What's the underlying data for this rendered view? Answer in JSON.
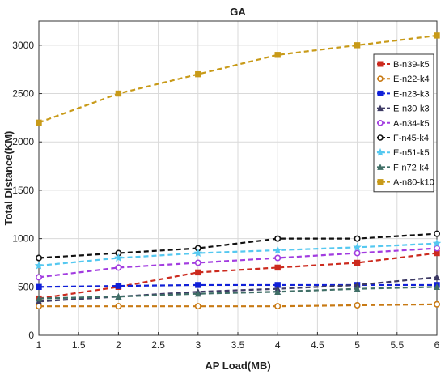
{
  "chart_data": {
    "type": "line",
    "title": "GA",
    "xlabel": "AP Load(MB)",
    "ylabel": "Total Distance(KM)",
    "xlim": [
      1,
      6
    ],
    "ylim": [
      0,
      3250
    ],
    "x_ticks": [
      "1",
      "1.5",
      "2",
      "2.5",
      "3",
      "3.5",
      "4",
      "4.5",
      "5",
      "5.5",
      "6"
    ],
    "y_ticks": [
      "0",
      "500",
      "1000",
      "1500",
      "2000",
      "2500",
      "3000"
    ],
    "grid": true,
    "legend_position": "top-right",
    "x": [
      1,
      2,
      3,
      4,
      5,
      6
    ],
    "series": [
      {
        "name": "B-n39-k5",
        "color": "#cc2a1e",
        "marker": "square",
        "values": [
          380,
          500,
          650,
          700,
          750,
          850
        ]
      },
      {
        "name": "E-n22-k4",
        "color": "#c87a14",
        "marker": "circle-open",
        "values": [
          300,
          300,
          300,
          300,
          310,
          320
        ]
      },
      {
        "name": "E-n23-k3",
        "color": "#1020d8",
        "marker": "square",
        "values": [
          500,
          510,
          520,
          520,
          520,
          520
        ]
      },
      {
        "name": "E-n30-k3",
        "color": "#3d3a64",
        "marker": "triangle",
        "values": [
          350,
          400,
          450,
          480,
          520,
          600
        ]
      },
      {
        "name": "A-n34-k5",
        "color": "#a23ce0",
        "marker": "circle-open",
        "values": [
          600,
          700,
          750,
          800,
          850,
          900
        ]
      },
      {
        "name": "F-n45-k4",
        "color": "#111111",
        "marker": "circle-open",
        "values": [
          800,
          850,
          900,
          1000,
          1000,
          1050
        ]
      },
      {
        "name": "E-n51-k5",
        "color": "#55c8f0",
        "marker": "star",
        "values": [
          720,
          800,
          850,
          880,
          910,
          950
        ]
      },
      {
        "name": "F-n72-k4",
        "color": "#3f6e66",
        "marker": "triangle",
        "values": [
          380,
          400,
          430,
          450,
          480,
          500
        ]
      },
      {
        "name": "A-n80-k10",
        "color": "#c89a18",
        "marker": "square",
        "values": [
          2200,
          2500,
          2700,
          2900,
          3000,
          3100
        ]
      }
    ]
  }
}
